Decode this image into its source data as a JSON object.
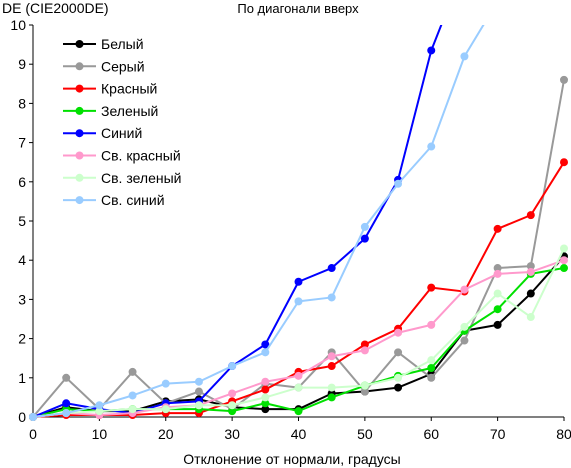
{
  "chart_data": {
    "type": "line",
    "title": "По диагонали вверх",
    "ylabel": "DE (CIE2000DE)",
    "xlabel": "Отклонение от нормали, градусы",
    "x": [
      0,
      5,
      10,
      15,
      20,
      25,
      30,
      35,
      40,
      45,
      50,
      55,
      60,
      65,
      70,
      75,
      80
    ],
    "xticks": [
      0,
      10,
      20,
      30,
      40,
      50,
      60,
      70,
      80
    ],
    "yticks": [
      0,
      1,
      2,
      3,
      4,
      5,
      6,
      7,
      8,
      9,
      10
    ],
    "xlim": [
      0,
      80
    ],
    "ylim": [
      0,
      10
    ],
    "grid": false,
    "legend_position": "top-left",
    "series": [
      {
        "name": "Белый",
        "color": "#000000",
        "values": [
          0,
          0.25,
          0.15,
          0.15,
          0.4,
          0.45,
          0.25,
          0.2,
          0.2,
          0.6,
          0.65,
          0.75,
          1.1,
          2.2,
          2.35,
          3.15,
          4.1
        ]
      },
      {
        "name": "Серый",
        "color": "#999999",
        "values": [
          0,
          1.0,
          0.2,
          1.15,
          0.35,
          0.65,
          0.2,
          0.85,
          0.75,
          1.65,
          0.65,
          1.65,
          1.0,
          1.95,
          3.8,
          3.85,
          8.6
        ]
      },
      {
        "name": "Красный",
        "color": "#ff0000",
        "values": [
          0,
          0.05,
          0.05,
          0.05,
          0.1,
          0.1,
          0.4,
          0.7,
          1.15,
          1.3,
          1.85,
          2.25,
          3.3,
          3.2,
          4.8,
          5.15,
          6.5
        ]
      },
      {
        "name": "Зеленый",
        "color": "#00e000",
        "values": [
          0,
          0.2,
          0.15,
          0.2,
          0.2,
          0.2,
          0.15,
          0.35,
          0.15,
          0.5,
          0.8,
          1.05,
          1.25,
          2.2,
          2.75,
          3.65,
          3.8
        ]
      },
      {
        "name": "Синий",
        "color": "#0000ff",
        "values": [
          0,
          0.35,
          0.2,
          0.1,
          0.35,
          0.4,
          1.3,
          1.85,
          3.45,
          3.8,
          4.55,
          6.05,
          9.35,
          11.5,
          null,
          null,
          null
        ]
      },
      {
        "name": "Св. красный",
        "color": "#ff99cc",
        "values": [
          0,
          0.1,
          0.05,
          0.1,
          0.25,
          0.3,
          0.6,
          0.9,
          1.05,
          1.55,
          1.7,
          2.15,
          2.35,
          3.25,
          3.65,
          3.7,
          4.0
        ]
      },
      {
        "name": "Св. зеленый",
        "color": "#ccffcc",
        "values": [
          0,
          0.1,
          0.15,
          0.2,
          0.2,
          0.3,
          0.3,
          0.5,
          0.75,
          0.75,
          0.8,
          1.0,
          1.45,
          2.3,
          3.15,
          2.55,
          4.3
        ]
      },
      {
        "name": "Св. синий",
        "color": "#99ccff",
        "values": [
          0,
          0.1,
          0.3,
          0.55,
          0.85,
          0.9,
          1.3,
          1.65,
          2.95,
          3.05,
          4.85,
          5.95,
          6.9,
          9.2,
          10.6,
          null,
          null
        ]
      }
    ]
  }
}
